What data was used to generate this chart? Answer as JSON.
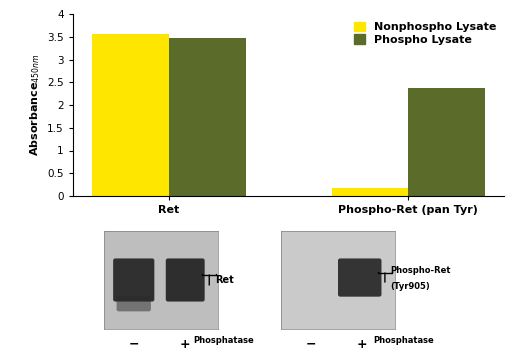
{
  "categories": [
    "Ret",
    "Phospho-Ret (pan Tyr)"
  ],
  "nonphospho_values": [
    3.57,
    0.17
  ],
  "phospho_values": [
    3.47,
    2.38
  ],
  "nonphospho_color": "#FFE600",
  "phospho_color": "#5A6B2A",
  "ylim": [
    0,
    4.0
  ],
  "yticks": [
    0,
    0.5,
    1.0,
    1.5,
    2.0,
    2.5,
    3.0,
    3.5,
    4.0
  ],
  "legend_nonphospho": "Nonphospho Lysate",
  "legend_phospho": "Phospho Lysate",
  "bar_width": 0.32,
  "background_color": "#ffffff",
  "tick_fontsize": 7.5,
  "legend_fontsize": 8,
  "blot_bg": "#BEBEBE",
  "blot_bg2": "#CACACA",
  "band_color": "#1a1a1a"
}
